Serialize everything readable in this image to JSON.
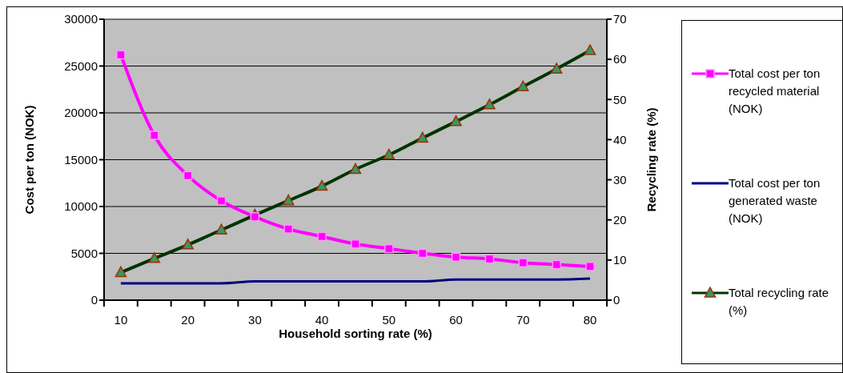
{
  "chart_data": {
    "type": "line",
    "xlabel": "Household sorting rate (%)",
    "ylabel": "Cost per ton (NOK)",
    "y2label": "Recycling rate (%)",
    "categories": [
      "10",
      null,
      "20",
      null,
      "30",
      null,
      "40",
      null,
      "50",
      null,
      "60",
      null,
      "70",
      null,
      "80"
    ],
    "series": [
      {
        "name": "Total cost per ton recycled material (NOK)",
        "color": "#ff00ff",
        "marker": "square",
        "values": [
          26200,
          17600,
          13300,
          10600,
          8900,
          7600,
          6800,
          6000,
          5500,
          5000,
          4600,
          4400,
          4000,
          3800,
          3600
        ]
      },
      {
        "name": "Total cost per ton generated waste (NOK)",
        "color": "#000080",
        "marker": "none",
        "values": [
          1800,
          1800,
          1800,
          1800,
          2000,
          2000,
          2000,
          2000,
          2000,
          2000,
          2200,
          2200,
          2200,
          2200,
          2300
        ]
      },
      {
        "name": "Total recycling rate (%)",
        "color": "#003300",
        "marker": "triangle",
        "axis": "y2",
        "values": [
          6.9,
          10.4,
          13.8,
          17.5,
          21.2,
          24.8,
          28.4,
          32.6,
          36.2,
          40.4,
          44.5,
          48.7,
          53.2,
          57.6,
          62.2
        ]
      }
    ],
    "ylim": [
      0,
      30000
    ],
    "yticks": [
      0,
      5000,
      10000,
      15000,
      20000,
      25000,
      30000
    ],
    "y2lim": [
      0,
      70
    ],
    "y2ticks": [
      0,
      10,
      20,
      30,
      40,
      50,
      60,
      70
    ],
    "grid": "y",
    "legend": "right"
  }
}
